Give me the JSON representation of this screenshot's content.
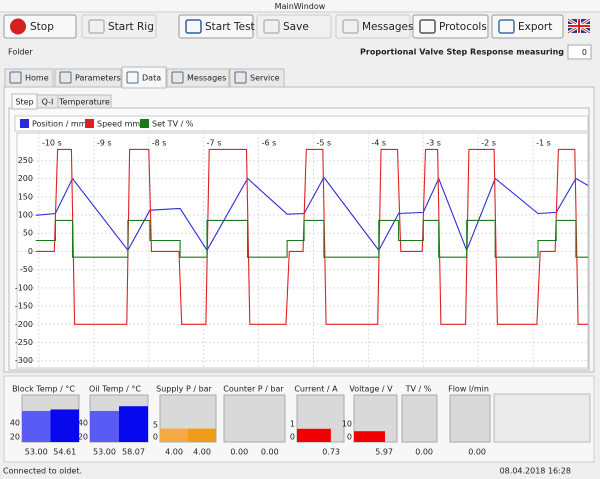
{
  "window": {
    "title": "MainWindow"
  },
  "toolbar": [
    "Stop",
    "Start Rig",
    "Start Test",
    "Save",
    "Messages",
    "Protocols",
    "Export"
  ],
  "folder": "Folder",
  "test_name": "Proportional Valve Step Response measuring",
  "counter": 0,
  "tabs": [
    "Home",
    "Parameters",
    "Data",
    "Messages",
    "Service"
  ],
  "subtabs": [
    "Step",
    "Q-I",
    "Temperature"
  ],
  "chart_data": {
    "type": "line",
    "xlim": [
      -10.4,
      0
    ],
    "xticks": [
      {
        "value": -10,
        "label": "-10 s"
      },
      {
        "value": -9,
        "label": "-9 s"
      },
      {
        "value": -8,
        "label": "-8 s"
      },
      {
        "value": -7,
        "label": "-7 s"
      },
      {
        "value": -6,
        "label": "-6 s"
      },
      {
        "value": -5,
        "label": "-5 s"
      },
      {
        "value": -4,
        "label": "-4 s"
      },
      {
        "value": -3,
        "label": "-3 s"
      },
      {
        "value": -2,
        "label": "-2 s"
      },
      {
        "value": -1,
        "label": "-1 s"
      }
    ],
    "ylim": [
      -320,
      325
    ],
    "yticks": [
      -300,
      -250,
      -200,
      -150,
      -100,
      -50,
      0,
      50,
      100,
      150,
      200,
      250
    ],
    "grid": true,
    "series": [
      {
        "name": "Position / mm",
        "color": "#2b2bdb",
        "x": [
          -10.06,
          -9.7,
          -9.39,
          -8.38,
          -7.98,
          -7.43,
          -6.94,
          -6.2,
          -5.48,
          -5.17,
          -4.81,
          -3.81,
          -3.45,
          -3.0,
          -2.72,
          -2.21,
          -1.69,
          -0.91,
          -0.58,
          -0.22,
          0
        ],
        "values": [
          99,
          104,
          200,
          3,
          113,
          118,
          3,
          200,
          102,
          104,
          203,
          3,
          104,
          107,
          200,
          3,
          200,
          104,
          107,
          200,
          181
        ]
      },
      {
        "name": "Speed mm/s",
        "color": "#e02020",
        "x": [
          -10.06,
          -9.72,
          -9.66,
          -9.41,
          -9.35,
          -8.4,
          -8.35,
          -8.0,
          -7.95,
          -7.45,
          -7.4,
          -6.96,
          -6.9,
          -6.22,
          -6.16,
          -5.5,
          -5.44,
          -5.19,
          -5.13,
          -4.83,
          -4.77,
          -3.83,
          -3.77,
          -3.47,
          -3.41,
          -3.02,
          -2.96,
          -2.74,
          -2.68,
          -2.23,
          -2.17,
          -1.71,
          -1.65,
          -0.93,
          -0.87,
          -0.6,
          -0.54,
          -0.24,
          -0.18,
          0
        ],
        "values": [
          0,
          0,
          280,
          280,
          -200,
          -200,
          280,
          280,
          0,
          0,
          -200,
          -200,
          280,
          280,
          -200,
          -200,
          0,
          0,
          280,
          280,
          -200,
          -200,
          280,
          280,
          0,
          0,
          280,
          280,
          -200,
          -200,
          280,
          280,
          -200,
          -200,
          0,
          0,
          280,
          280,
          -200,
          -200
        ]
      },
      {
        "name": "Set TV / %",
        "color": "#1a7a1a",
        "x": [
          -10.06,
          -9.7,
          -9.7,
          -9.39,
          -9.39,
          -8.38,
          -8.38,
          -7.98,
          -7.98,
          -7.43,
          -7.43,
          -6.94,
          -6.94,
          -6.2,
          -6.2,
          -5.48,
          -5.48,
          -5.17,
          -5.17,
          -4.81,
          -4.81,
          -3.81,
          -3.81,
          -3.45,
          -3.45,
          -3.0,
          -3.0,
          -2.72,
          -2.72,
          -2.21,
          -2.21,
          -1.69,
          -1.69,
          -0.91,
          -0.91,
          -0.58,
          -0.58,
          -0.22,
          -0.22,
          0
        ],
        "values": [
          30,
          30,
          85,
          85,
          -16,
          -16,
          85,
          85,
          30,
          30,
          -16,
          -16,
          85,
          85,
          -16,
          -16,
          30,
          30,
          85,
          85,
          -16,
          -16,
          85,
          85,
          30,
          30,
          85,
          85,
          -16,
          -16,
          85,
          85,
          -16,
          -16,
          30,
          30,
          85,
          85,
          -16,
          -16
        ]
      }
    ]
  },
  "gauges": [
    {
      "title": "Block Temp / °C",
      "ylim": [
        20,
        70
      ],
      "yticks": [
        20,
        40
      ],
      "values": [
        53,
        54.61
      ],
      "value_labels": [
        "53.00",
        "54.61"
      ],
      "colors": [
        "#5a5af5",
        "#0808ef"
      ]
    },
    {
      "title": "Oil Temp / °C",
      "ylim": [
        20,
        70
      ],
      "yticks": [
        20,
        40
      ],
      "values": [
        53,
        58.07
      ],
      "value_labels": [
        "53.00",
        "58.07"
      ],
      "colors": [
        "#5a5af5",
        "#0808ef"
      ]
    },
    {
      "title": "Supply P / bar",
      "ylim": [
        0,
        14
      ],
      "yticks": [
        0,
        5
      ],
      "values": [
        4,
        4
      ],
      "value_labels": [
        "4.00",
        "4.00"
      ],
      "colors": [
        "#f5aa45",
        "#f09c18"
      ]
    },
    {
      "title": "Counter P / bar",
      "ylim": [
        0,
        10
      ],
      "values": [
        0,
        0
      ],
      "value_labels": [
        "0.00",
        "0.00"
      ],
      "colors": [
        "#f5aa45",
        "#f09c18"
      ]
    },
    {
      "title": "Current / A",
      "ylim": [
        0,
        2.6
      ],
      "yticks": [
        0,
        1
      ],
      "values": [
        0.73
      ],
      "value_labels": [
        "0.73"
      ],
      "colors": [
        "#f00000"
      ]
    },
    {
      "title": "Voltage / V",
      "ylim": [
        0,
        26
      ],
      "yticks": [
        0,
        10
      ],
      "values": [
        5.97
      ],
      "value_labels": [
        "5.97"
      ],
      "colors": [
        "#f00000"
      ]
    },
    {
      "title": "TV / %",
      "ylim": [
        0,
        100
      ],
      "values": [
        0
      ],
      "value_labels": [
        "0.00"
      ],
      "colors": [
        "#f00000"
      ]
    },
    {
      "title": "Flow l/min",
      "ylim": [
        0,
        10
      ],
      "values": [
        0
      ],
      "value_labels": [
        "0.00"
      ],
      "colors": [
        "#2b2bdb"
      ]
    }
  ],
  "status": {
    "message": "Connected to oldet.",
    "datetime": "08.04.2018 16:28"
  }
}
